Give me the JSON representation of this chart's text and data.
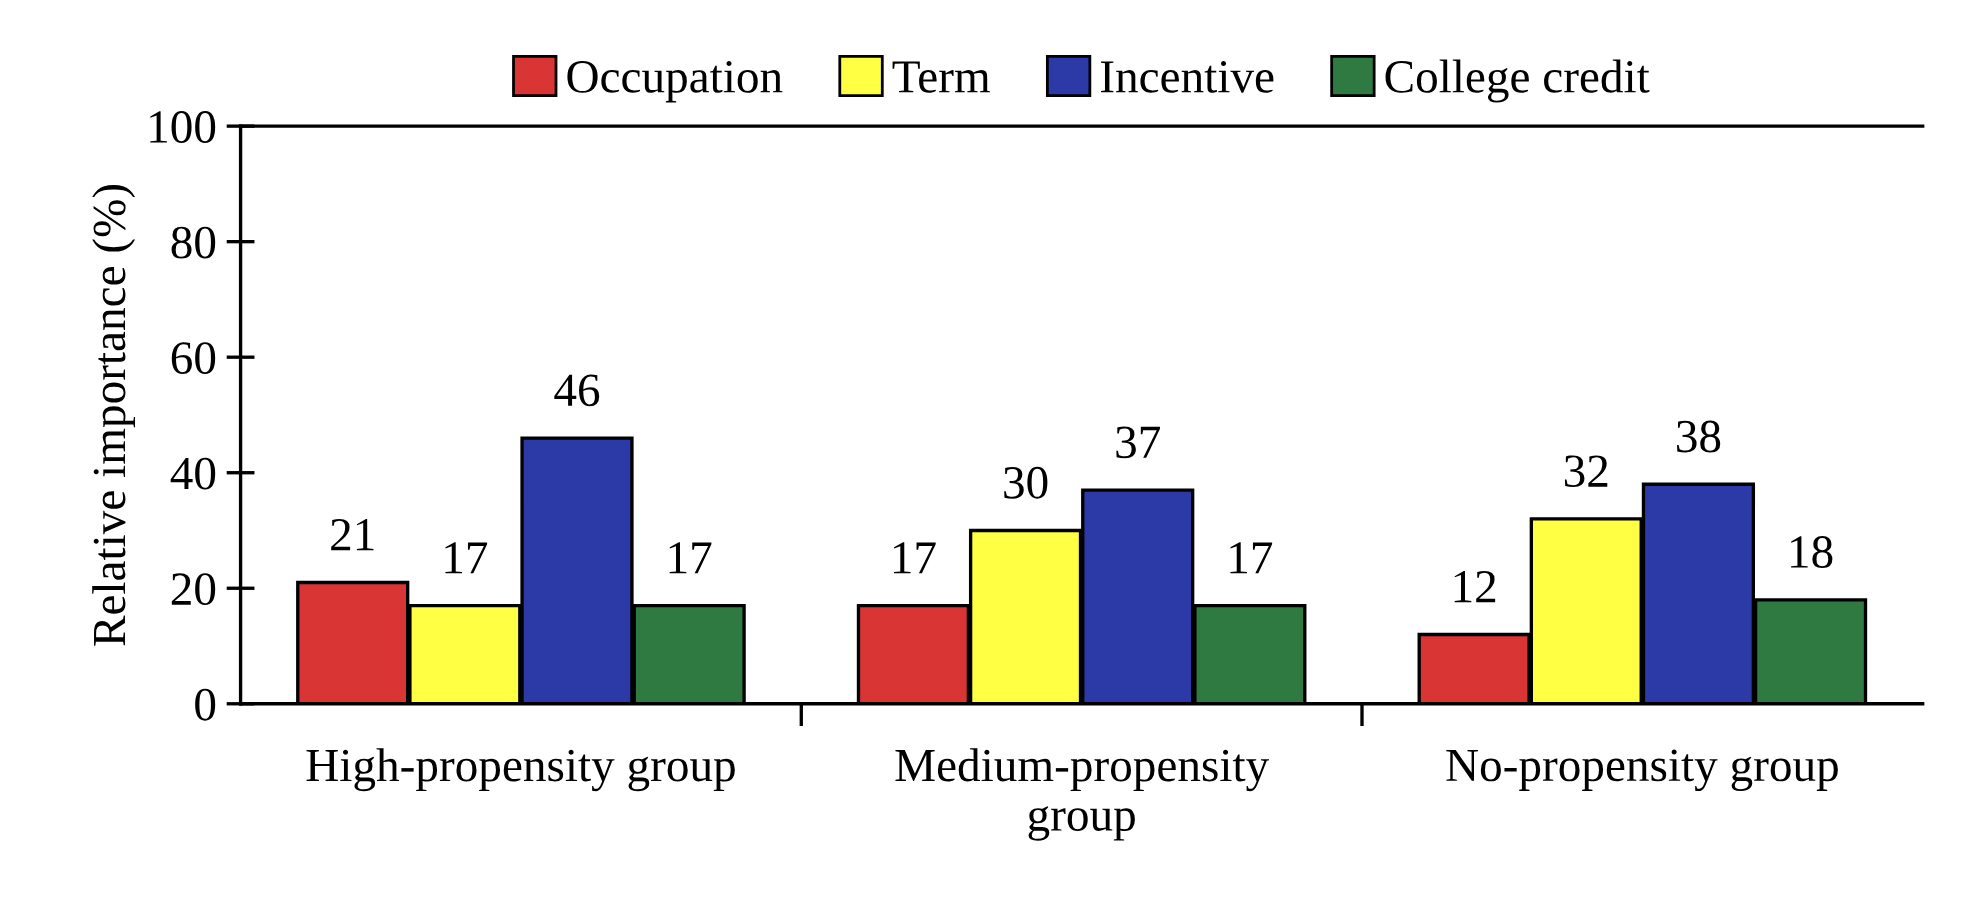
{
  "chart_data": {
    "type": "bar",
    "ylabel": "Relative importance (%)",
    "categories": [
      "High-propensity group",
      "Medium-propensity\ngroup",
      "No-propensity group"
    ],
    "series": [
      {
        "name": "Occupation",
        "color": "#d93535",
        "values": [
          21,
          17,
          12
        ]
      },
      {
        "name": "Term",
        "color": "#ffff44",
        "values": [
          17,
          30,
          32
        ]
      },
      {
        "name": "Incentive",
        "color": "#2b3aa6",
        "values": [
          46,
          37,
          38
        ]
      },
      {
        "name": "College credit",
        "color": "#2f7a40",
        "values": [
          17,
          17,
          18
        ]
      }
    ],
    "ylim": [
      0,
      100
    ],
    "yticks": [
      0,
      20,
      40,
      60,
      80,
      100
    ],
    "data_labels": true,
    "grid": false,
    "legend": "top"
  }
}
